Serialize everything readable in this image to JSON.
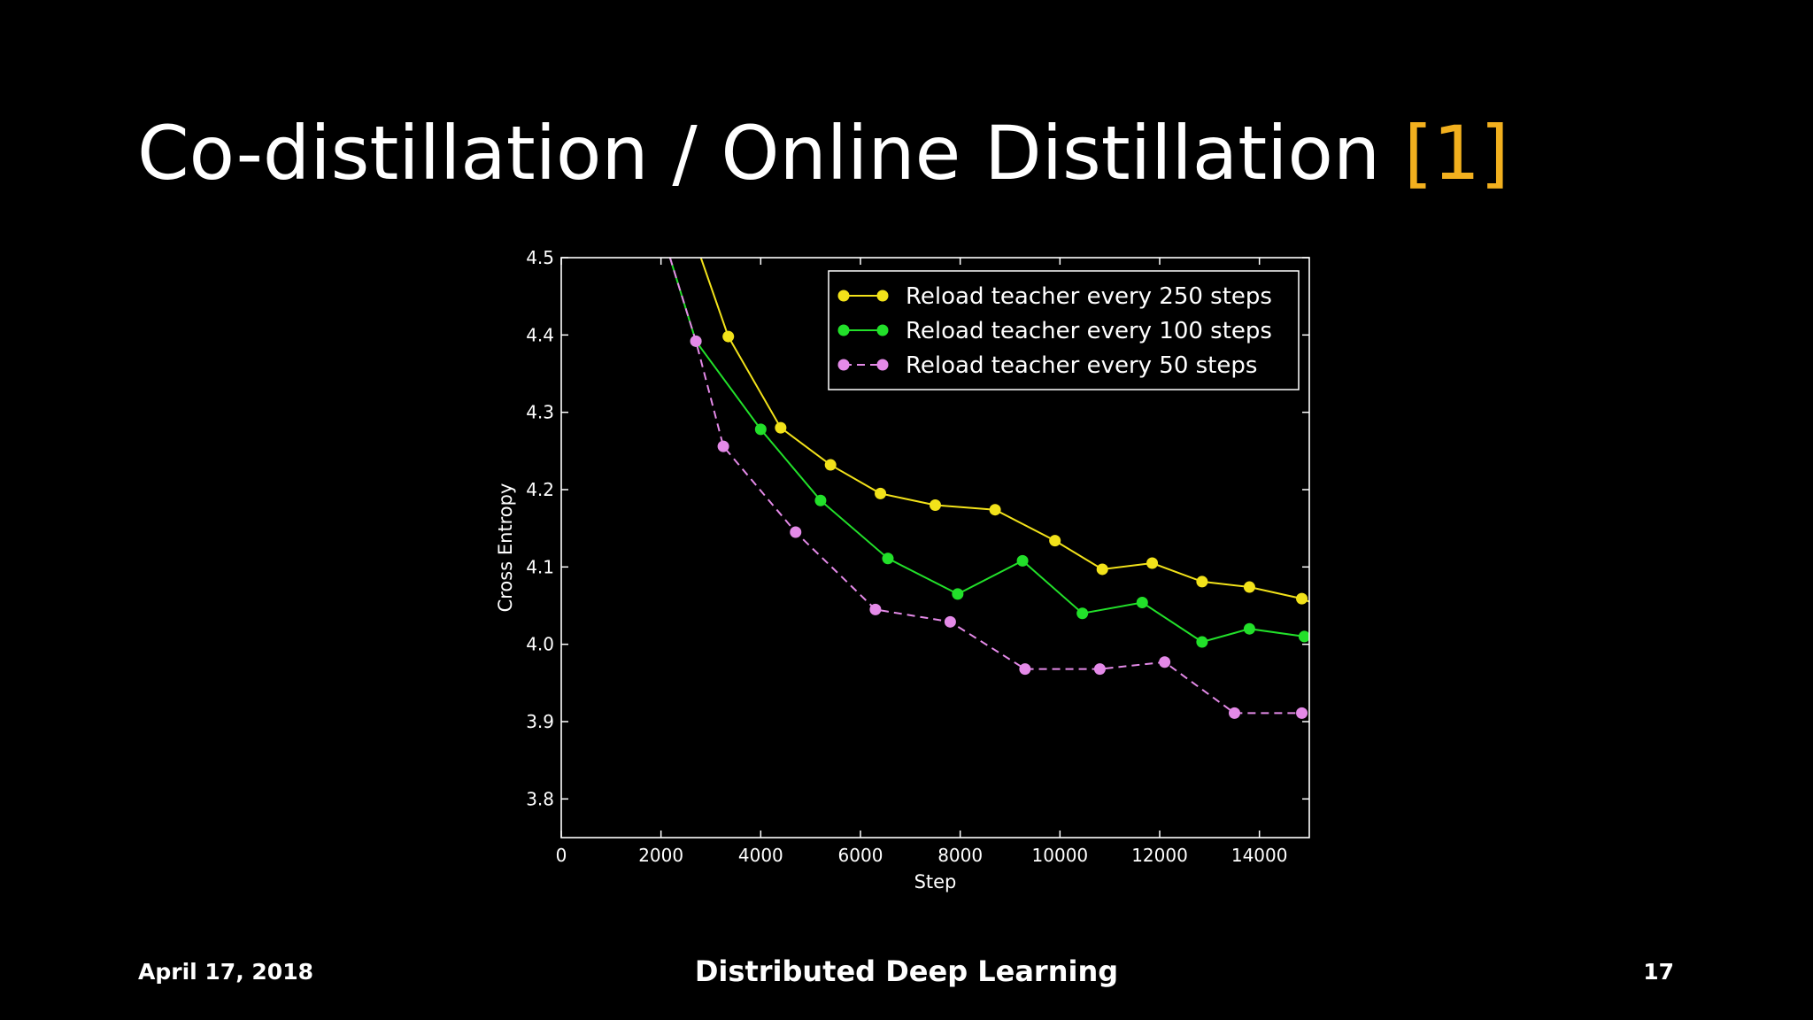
{
  "slide": {
    "title_main": "Co-distillation / Online Distillation ",
    "title_ref": "[1]",
    "footer_date": "April 17, 2018",
    "footer_center": "Distributed Deep Learning",
    "page_number": "17",
    "colors": {
      "background": "#000000",
      "title": "#ffffff",
      "reference": "#f2b01e"
    }
  },
  "chart_data": {
    "type": "line",
    "title": "",
    "xlabel": "Step",
    "ylabel": "Cross Entropy",
    "xlim": [
      0,
      15000
    ],
    "ylim": [
      3.75,
      4.5
    ],
    "xticks": [
      0,
      2000,
      4000,
      6000,
      8000,
      10000,
      12000,
      14000
    ],
    "yticks": [
      3.8,
      3.9,
      4.0,
      4.1,
      4.2,
      4.3,
      4.4,
      4.5
    ],
    "grid": false,
    "legend_position": "top-right",
    "series": [
      {
        "name": "Reload teacher every 250 steps",
        "color": "#f2e21a",
        "dashed": false,
        "x": [
          2800,
          3350,
          4400,
          5400,
          6400,
          7500,
          8700,
          9900,
          10850,
          11850,
          12850,
          13800,
          14850,
          15000
        ],
        "y": [
          4.5,
          4.398,
          4.28,
          4.232,
          4.195,
          4.18,
          4.174,
          4.134,
          4.097,
          4.105,
          4.081,
          4.074,
          4.059,
          4.055
        ],
        "marker_x": [
          3350,
          4400,
          5400,
          6400,
          7500,
          8700,
          9900,
          10850,
          11850,
          12850,
          13800,
          14850
        ],
        "marker_y": [
          4.398,
          4.28,
          4.232,
          4.195,
          4.18,
          4.174,
          4.134,
          4.097,
          4.105,
          4.081,
          4.074,
          4.059
        ]
      },
      {
        "name": "Reload teacher every 100 steps",
        "color": "#22e02a",
        "dashed": false,
        "x": [
          2180,
          2700,
          4000,
          5200,
          6550,
          7950,
          9250,
          10450,
          11650,
          12850,
          13800,
          14900
        ],
        "y": [
          4.5,
          4.392,
          4.278,
          4.186,
          4.111,
          4.065,
          4.108,
          4.04,
          4.054,
          4.003,
          4.02,
          4.01
        ],
        "marker_x": [
          2700,
          4000,
          5200,
          6550,
          7950,
          9250,
          10450,
          11650,
          12850,
          13800,
          14900
        ],
        "marker_y": [
          4.392,
          4.278,
          4.186,
          4.111,
          4.065,
          4.108,
          4.04,
          4.054,
          4.003,
          4.02,
          4.01
        ]
      },
      {
        "name": "Reload teacher every 50 steps",
        "color": "#e48ae8",
        "dashed": true,
        "x": [
          2180,
          2700,
          3250,
          4700,
          6300,
          7800,
          9300,
          10800,
          12100,
          13500,
          14850
        ],
        "y": [
          4.5,
          4.392,
          4.256,
          4.145,
          4.045,
          4.029,
          3.968,
          3.968,
          3.977,
          3.911,
          3.911
        ],
        "marker_x": [
          2700,
          3250,
          4700,
          6300,
          7800,
          9300,
          10800,
          12100,
          13500,
          14850
        ],
        "marker_y": [
          4.392,
          4.256,
          4.145,
          4.045,
          4.029,
          3.968,
          3.968,
          3.977,
          3.911,
          3.911
        ]
      }
    ]
  }
}
